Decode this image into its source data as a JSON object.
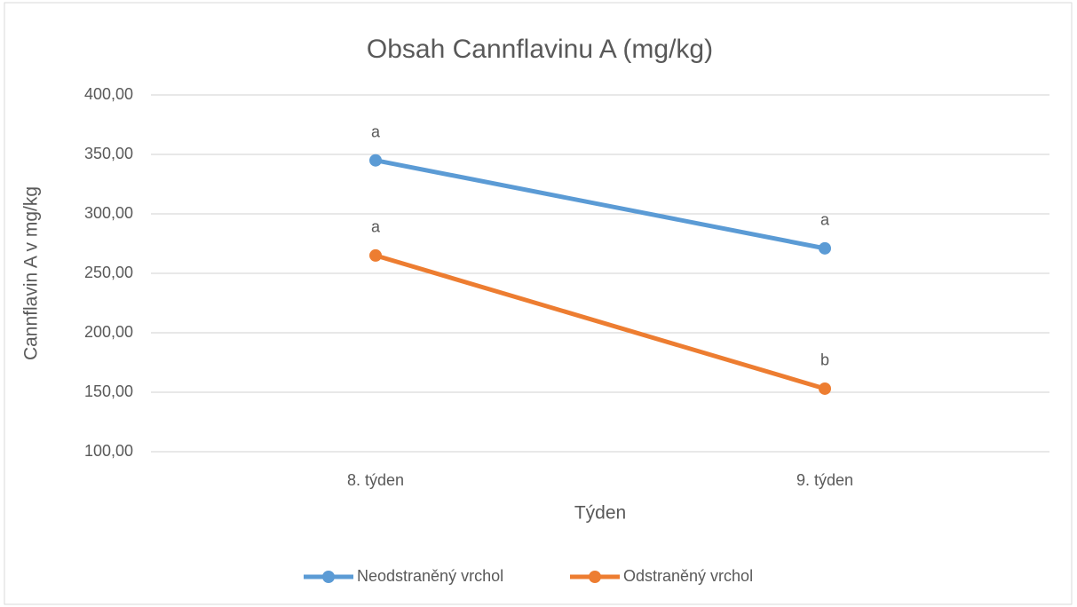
{
  "chart_data": {
    "type": "line",
    "title": "Obsah Cannflavinu A (mg/kg)",
    "x_label": "Týden",
    "y_label": "Cannflavin A v mg/kg",
    "categories": [
      "8. týden",
      "9. týden"
    ],
    "series": [
      {
        "name": "Neodstraněný vrchol",
        "color": "#5b9bd5",
        "values": [
          345,
          271
        ],
        "value_labels": [
          "a",
          "a"
        ]
      },
      {
        "name": "Odstraněný vrchol",
        "color": "#ed7d31",
        "values": [
          265,
          153
        ],
        "value_labels": [
          "a",
          "b"
        ]
      }
    ],
    "ylim": [
      100,
      400
    ],
    "yticks": [
      {
        "value": 100,
        "label": "100,00"
      },
      {
        "value": 150,
        "label": "150,00"
      },
      {
        "value": 200,
        "label": "200,00"
      },
      {
        "value": 250,
        "label": "250,00"
      },
      {
        "value": 300,
        "label": "300,00"
      },
      {
        "value": 350,
        "label": "350,00"
      },
      {
        "value": 400,
        "label": "400,00"
      }
    ],
    "grid": true,
    "legend": "bottom"
  }
}
